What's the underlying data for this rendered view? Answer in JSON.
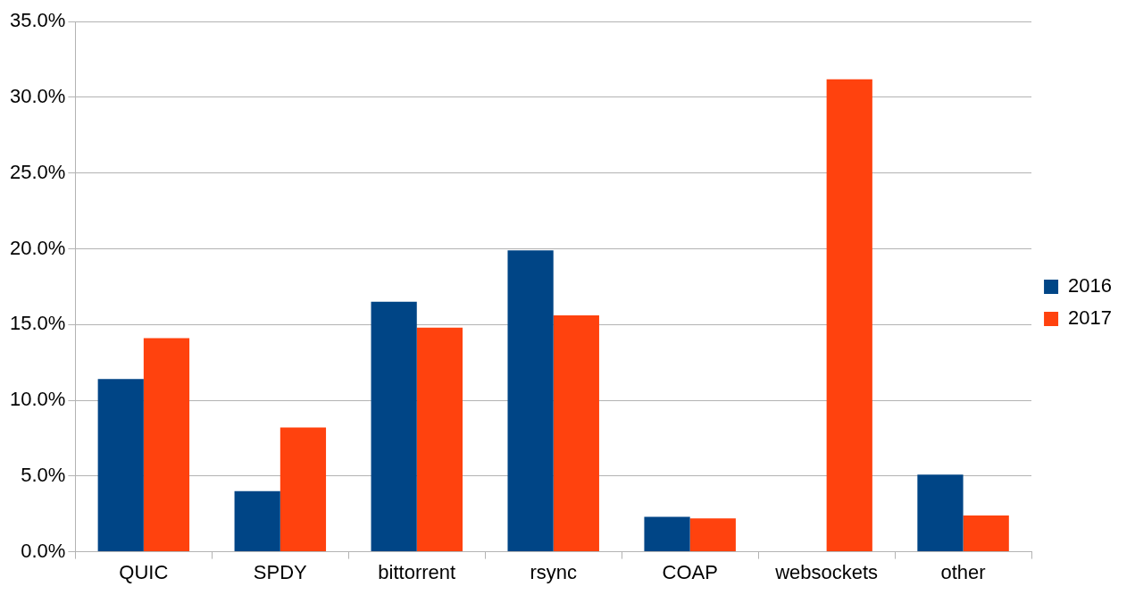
{
  "chart_data": {
    "type": "bar",
    "categories": [
      "QUIC",
      "SPDY",
      "bittorrent",
      "rsync",
      "COAP",
      "websockets",
      "other"
    ],
    "series": [
      {
        "name": "2016",
        "color": "#004586",
        "values": [
          11.4,
          4.0,
          16.5,
          19.9,
          2.3,
          null,
          5.1
        ]
      },
      {
        "name": "2017",
        "color": "#ff420e",
        "values": [
          14.1,
          8.2,
          14.8,
          15.6,
          2.2,
          31.2,
          2.4
        ]
      }
    ],
    "ylim": [
      0,
      35
    ],
    "yticks": [
      {
        "value": 0,
        "label": "0.0%"
      },
      {
        "value": 5,
        "label": "5.0%"
      },
      {
        "value": 10,
        "label": "10.0%"
      },
      {
        "value": 15,
        "label": "15.0%"
      },
      {
        "value": 20,
        "label": "20.0%"
      },
      {
        "value": 25,
        "label": "25.0%"
      },
      {
        "value": 30,
        "label": "30.0%"
      },
      {
        "value": 35,
        "label": "35.0%"
      }
    ],
    "grid": "y",
    "legend": "right"
  }
}
